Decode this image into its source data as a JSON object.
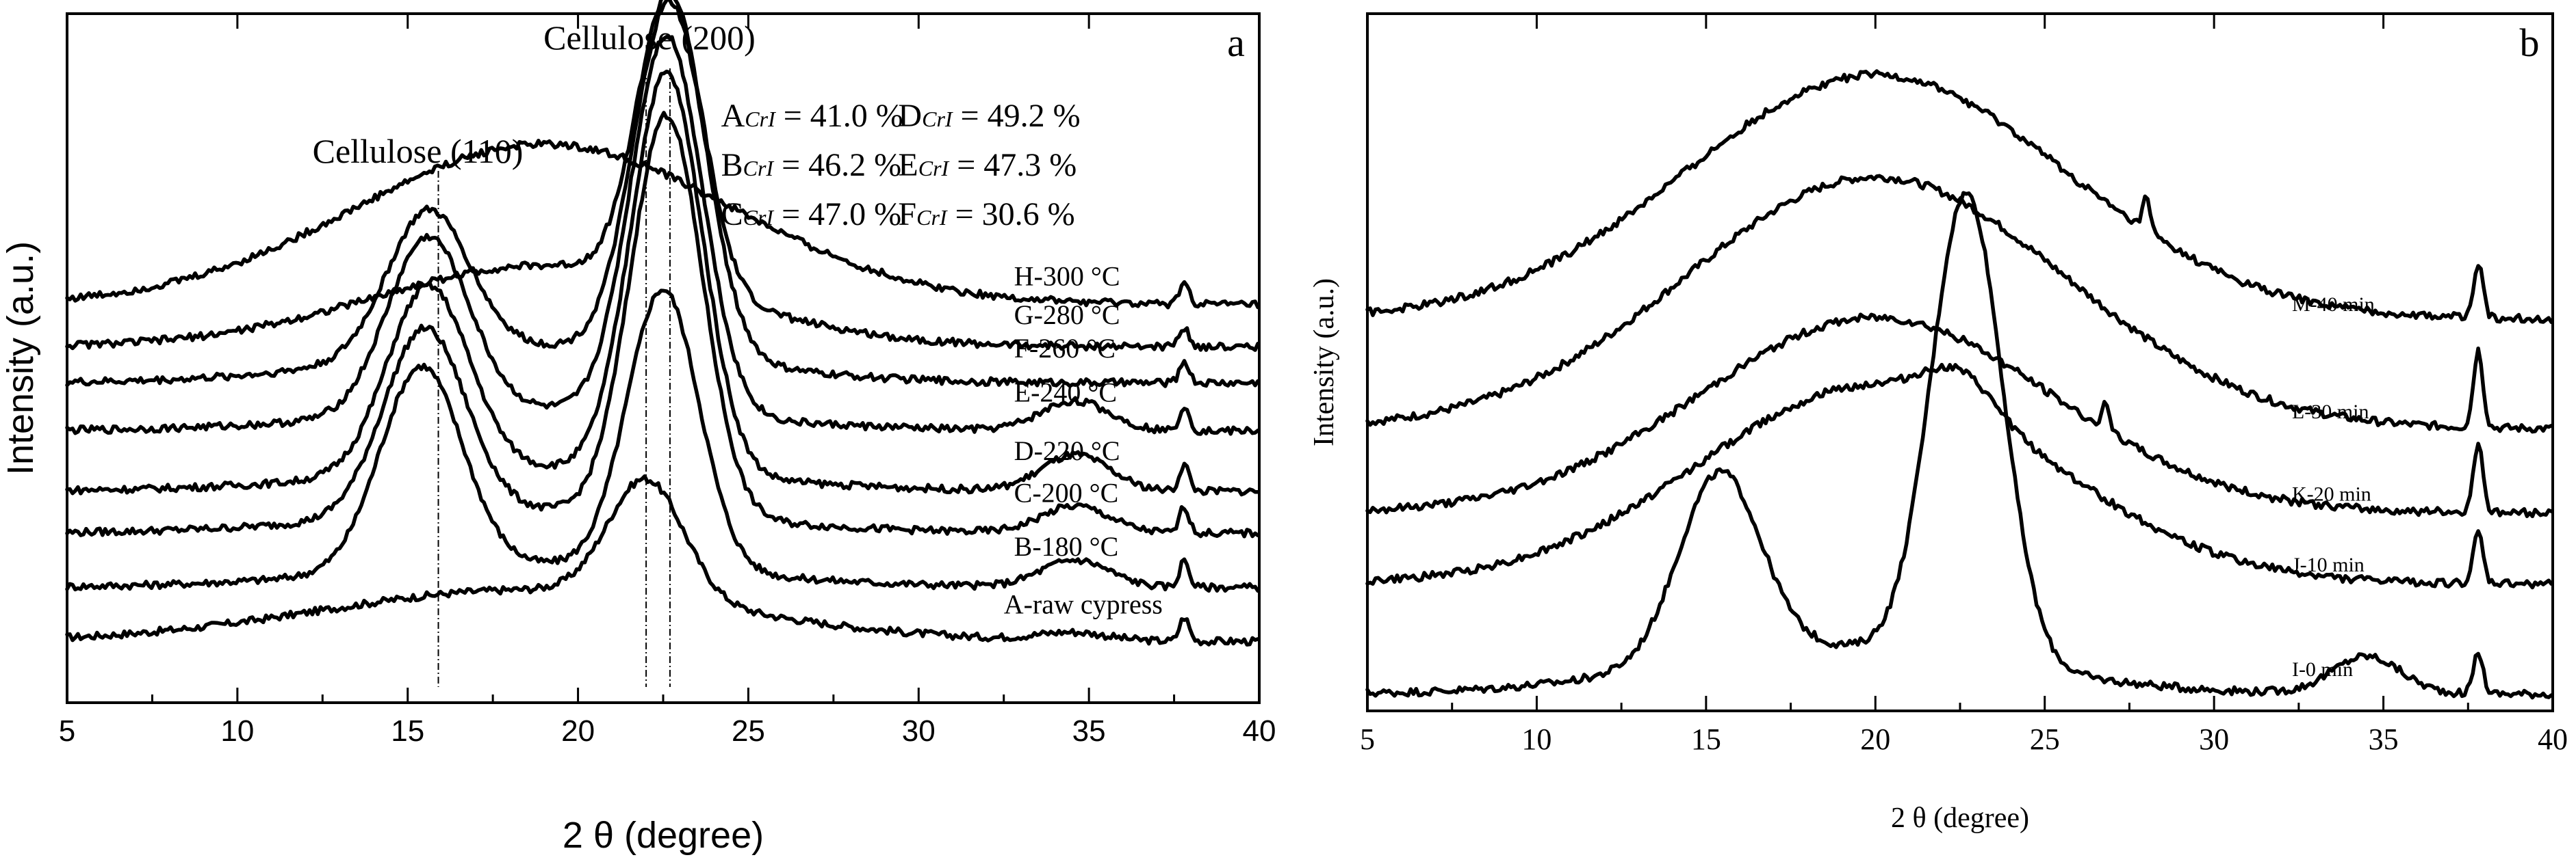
{
  "chart_data": [
    {
      "id": "a",
      "type": "line",
      "panel_label": "a",
      "title": "",
      "xlabel": "2 θ (degree)",
      "ylabel": "Intensity (a.u.)",
      "xlim": [
        5,
        40
      ],
      "xticks": [
        5,
        10,
        15,
        20,
        25,
        30,
        35,
        40
      ],
      "ylim": [
        0,
        1
      ],
      "grid": false,
      "peak_annotations": [
        {
          "label": "Cellulose (110)",
          "x": 15.9
        },
        {
          "label": "Cellulose (200)",
          "x": 22.7
        }
      ],
      "reference_lines_x": [
        15.9,
        22.0,
        22.7
      ],
      "crystallinity": [
        {
          "sample": "A",
          "sub": "CrI",
          "value": " = 41.0 %"
        },
        {
          "sample": "B",
          "sub": "CrI",
          "value": " = 46.2 %"
        },
        {
          "sample": "C",
          "sub": "CrI",
          "value": " = 47.0 %"
        },
        {
          "sample": "D",
          "sub": "CrI",
          "value": " = 49.2 %"
        },
        {
          "sample": "E",
          "sub": "CrI",
          "value": " = 47.3 %"
        },
        {
          "sample": "F",
          "sub": "CrI",
          "value": " = 30.6 %"
        }
      ],
      "series": [
        {
          "name": "A-raw cypress",
          "label_x": 32.5,
          "baseline": 0.07,
          "amp": 0.66,
          "broad": [
            18.5,
            6.0,
            0.13
          ],
          "amorph": [
            16,
            2.2,
            0.0
          ],
          "peak110": [
            16.0,
            1.1,
            0.0
          ],
          "peak200": [
            22.0,
            1.1,
            0.3
          ],
          "bump": [
            34.5,
            1.0,
            0.02
          ],
          "sharp": [
            37.8,
            0.14,
            0.06
          ]
        },
        {
          "name": "B-180 °C",
          "label_x": 32.8,
          "baseline": 0.16,
          "amp": 0.75,
          "broad": [
            19,
            5.5,
            0.05
          ],
          "amorph": [
            16,
            1.0,
            0.0
          ],
          "peak110": [
            15.4,
            1.2,
            0.45
          ],
          "peak200": [
            22.5,
            1.05,
            0.62
          ],
          "bump": [
            34.6,
            1.0,
            0.06
          ],
          "sharp": [
            37.8,
            0.14,
            0.06
          ]
        },
        {
          "name": "C-200 °C",
          "label_x": 32.8,
          "baseline": 0.25,
          "amp": 0.74,
          "broad": [
            19,
            5.5,
            0.05
          ],
          "amorph": [
            16,
            1.0,
            0.0
          ],
          "peak110": [
            15.5,
            1.2,
            0.42
          ],
          "peak200": [
            22.6,
            1.05,
            0.9
          ],
          "bump": [
            34.6,
            1.0,
            0.06
          ],
          "sharp": [
            37.8,
            0.14,
            0.06
          ]
        },
        {
          "name": "D-220 °C",
          "label_x": 32.8,
          "baseline": 0.32,
          "amp": 0.74,
          "broad": [
            19,
            5.5,
            0.05
          ],
          "amorph": [
            16,
            1.0,
            0.0
          ],
          "peak110": [
            15.6,
            1.2,
            0.42
          ],
          "peak200": [
            22.6,
            1.05,
            0.9
          ],
          "bump": [
            34.6,
            1.0,
            0.08
          ],
          "sharp": [
            37.8,
            0.14,
            0.06
          ]
        },
        {
          "name": "E-240 °C",
          "label_x": 32.8,
          "baseline": 0.42,
          "amp": 0.7,
          "broad": [
            19,
            5.5,
            0.05
          ],
          "amorph": [
            16,
            1.0,
            0.0
          ],
          "peak110": [
            15.6,
            1.2,
            0.42
          ],
          "peak200": [
            22.6,
            1.05,
            0.9
          ],
          "bump": [
            34.6,
            1.0,
            0.07
          ],
          "sharp": [
            37.8,
            0.14,
            0.06
          ]
        },
        {
          "name": "F-260 °C",
          "label_x": 32.8,
          "baseline": 0.5,
          "amp": 0.6,
          "broad": [
            19,
            5.0,
            0.1
          ],
          "amorph": [
            16,
            1.0,
            0.0
          ],
          "peak110": [
            15.6,
            1.2,
            0.4
          ],
          "peak200": [
            22.7,
            1.05,
            0.98
          ],
          "bump": [
            34.6,
            1.0,
            0.0
          ],
          "sharp": [
            37.8,
            0.14,
            0.06
          ]
        },
        {
          "name": "G-280 °C",
          "label_x": 32.8,
          "baseline": 0.56,
          "amp": 0.54,
          "broad": [
            19,
            5.0,
            0.25
          ],
          "amorph": [
            16,
            1.0,
            0.0
          ],
          "peak110": [
            16,
            1.3,
            0.0
          ],
          "peak200": [
            22.7,
            0.95,
            0.9
          ],
          "bump": [
            34.6,
            1.0,
            0.0
          ],
          "sharp": [
            37.8,
            0.14,
            0.06
          ]
        },
        {
          "name": "H-300 °C",
          "label_x": 32.8,
          "baseline": 0.63,
          "amp": 0.46,
          "broad": [
            19,
            5.5,
            0.58
          ],
          "amorph": [
            16,
            1.0,
            0.0
          ],
          "peak110": [
            16,
            1.3,
            0.0
          ],
          "peak200": [
            22.5,
            1.0,
            0.0
          ],
          "bump": [
            34.6,
            1.0,
            0.0
          ],
          "sharp": [
            37.8,
            0.14,
            0.08
          ]
        }
      ]
    },
    {
      "id": "b",
      "type": "line",
      "panel_label": "b",
      "title": "",
      "xlabel": "2 θ (degree)",
      "ylabel": "Intensity (a.u.)",
      "xlim": [
        5,
        40
      ],
      "xticks": [
        5,
        10,
        15,
        20,
        25,
        30,
        35,
        40
      ],
      "ylim": [
        0,
        1
      ],
      "grid": false,
      "series": [
        {
          "name": "I-0 min",
          "label_x": 32.3,
          "baseline": 0.0,
          "amp": 0.72,
          "broad": [
            19,
            5.0,
            0.1
          ],
          "amorph": [
            16,
            1.0,
            0.0
          ],
          "peak110": [
            15.4,
            1.2,
            0.4
          ],
          "peak200": [
            22.7,
            1.05,
            1.0
          ],
          "bump": [
            34.5,
            1.0,
            0.08
          ],
          "sharp": [
            37.8,
            0.14,
            0.09
          ]
        },
        {
          "name": "J-10 min",
          "label_x": 32.3,
          "baseline": 0.17,
          "amp": 0.56,
          "broad": [
            20,
            5.2,
            0.55
          ],
          "amorph": [
            16,
            1.0,
            0.0
          ],
          "peak110": [
            15.4,
            1.2,
            0.0
          ],
          "peak200": [
            22.5,
            1.0,
            0.1
          ],
          "bump": [
            34.5,
            1.0,
            0.0
          ],
          "sharp": [
            37.8,
            0.14,
            0.14
          ]
        },
        {
          "name": "K-20 min",
          "label_x": 32.3,
          "baseline": 0.28,
          "amp": 0.55,
          "broad": [
            20,
            5.2,
            0.55
          ],
          "amorph": [
            16,
            1.0,
            0.0
          ],
          "peak110": [
            15.4,
            1.2,
            0.0
          ],
          "peak200": [
            26.8,
            0.12,
            0.07
          ],
          "bump": [
            34.5,
            1.0,
            0.0
          ],
          "sharp": [
            37.8,
            0.14,
            0.2
          ]
        },
        {
          "name": "L-30 min",
          "label_x": 32.3,
          "baseline": 0.41,
          "amp": 0.5,
          "broad": [
            20,
            5.6,
            0.78
          ],
          "amorph": [
            16,
            1.0,
            0.0
          ],
          "peak110": [
            15.4,
            1.2,
            0.0
          ],
          "peak200": [
            22.5,
            1.0,
            0.0
          ],
          "bump": [
            34.5,
            1.0,
            0.0
          ],
          "sharp": [
            37.8,
            0.14,
            0.24
          ]
        },
        {
          "name": "M-40 min",
          "label_x": 32.3,
          "baseline": 0.58,
          "amp": 0.42,
          "broad": [
            20,
            5.6,
            0.9
          ],
          "amorph": [
            16,
            1.0,
            0.0
          ],
          "peak110": [
            15.4,
            1.2,
            0.0
          ],
          "peak200": [
            28.0,
            0.12,
            0.12
          ],
          "bump": [
            34.5,
            1.0,
            0.0
          ],
          "sharp": [
            37.8,
            0.14,
            0.2
          ]
        }
      ]
    }
  ]
}
